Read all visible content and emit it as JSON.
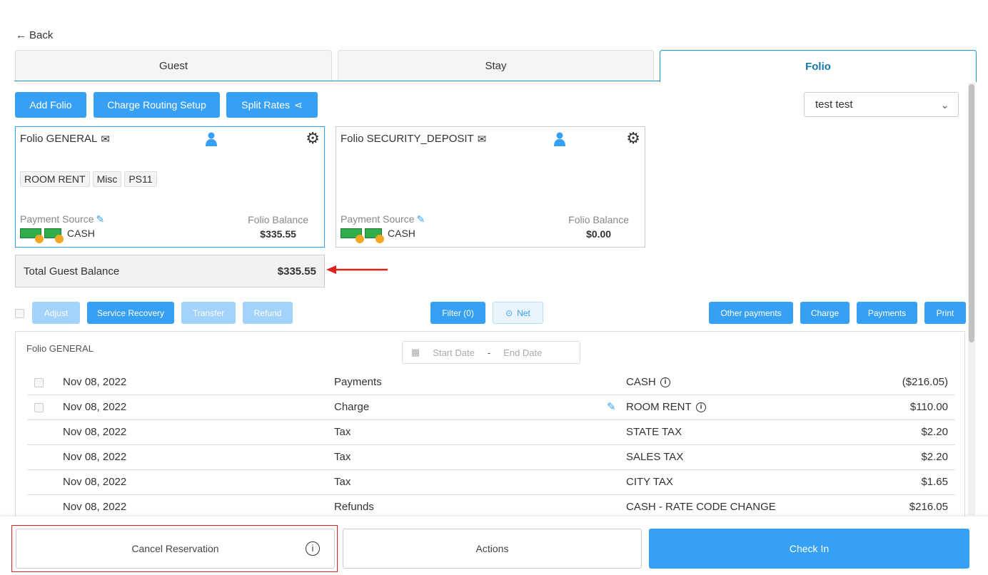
{
  "back": "Back",
  "tabs": [
    "Guest",
    "Stay",
    "Folio"
  ],
  "toolbar": {
    "add_folio": "Add Folio",
    "charge_routing": "Charge Routing Setup",
    "split_rates": "Split Rates",
    "guest_select": "test test"
  },
  "folios": [
    {
      "title": "Folio GENERAL",
      "chips": [
        "ROOM RENT",
        "Misc",
        "PS11"
      ],
      "payment_source_label": "Payment Source",
      "payment_source": "CASH",
      "balance_label": "Folio Balance",
      "balance": "$335.55"
    },
    {
      "title": "Folio SECURITY_DEPOSIT",
      "chips": [],
      "payment_source_label": "Payment Source",
      "payment_source": "CASH",
      "balance_label": "Folio Balance",
      "balance": "$0.00"
    }
  ],
  "total": {
    "label": "Total Guest Balance",
    "value": "$335.55"
  },
  "actions": {
    "adjust": "Adjust",
    "service_recovery": "Service Recovery",
    "transfer": "Transfer",
    "refund": "Refund",
    "filter": "Filter (0)",
    "net": "Net",
    "other_payments": "Other payments",
    "charge": "Charge",
    "payments": "Payments",
    "print": "Print"
  },
  "panel": {
    "title": "Folio GENERAL",
    "start_placeholder": "Start Date",
    "end_placeholder": "End Date",
    "sep": "-"
  },
  "rows": [
    {
      "date": "Nov 08, 2022",
      "type": "Payments",
      "desc": "CASH",
      "amount": "($216.05)",
      "checkbox": true,
      "info": true,
      "edit": false
    },
    {
      "date": "Nov 08, 2022",
      "type": "Charge",
      "desc": "ROOM RENT",
      "amount": "$110.00",
      "checkbox": true,
      "info": true,
      "edit": true
    },
    {
      "date": "Nov 08, 2022",
      "type": "Tax",
      "desc": "STATE TAX",
      "amount": "$2.20"
    },
    {
      "date": "Nov 08, 2022",
      "type": "Tax",
      "desc": "SALES TAX",
      "amount": "$2.20"
    },
    {
      "date": "Nov 08, 2022",
      "type": "Tax",
      "desc": "CITY TAX",
      "amount": "$1.65"
    },
    {
      "date": "Nov 08, 2022",
      "type": "Refunds",
      "desc": "CASH - RATE CODE CHANGE",
      "amount": "$216.05"
    }
  ],
  "footer": {
    "cancel": "Cancel Reservation",
    "actions": "Actions",
    "check_in": "Check In"
  },
  "colors": {
    "primary": "#35a0f4",
    "annotation": "#e0201b"
  }
}
